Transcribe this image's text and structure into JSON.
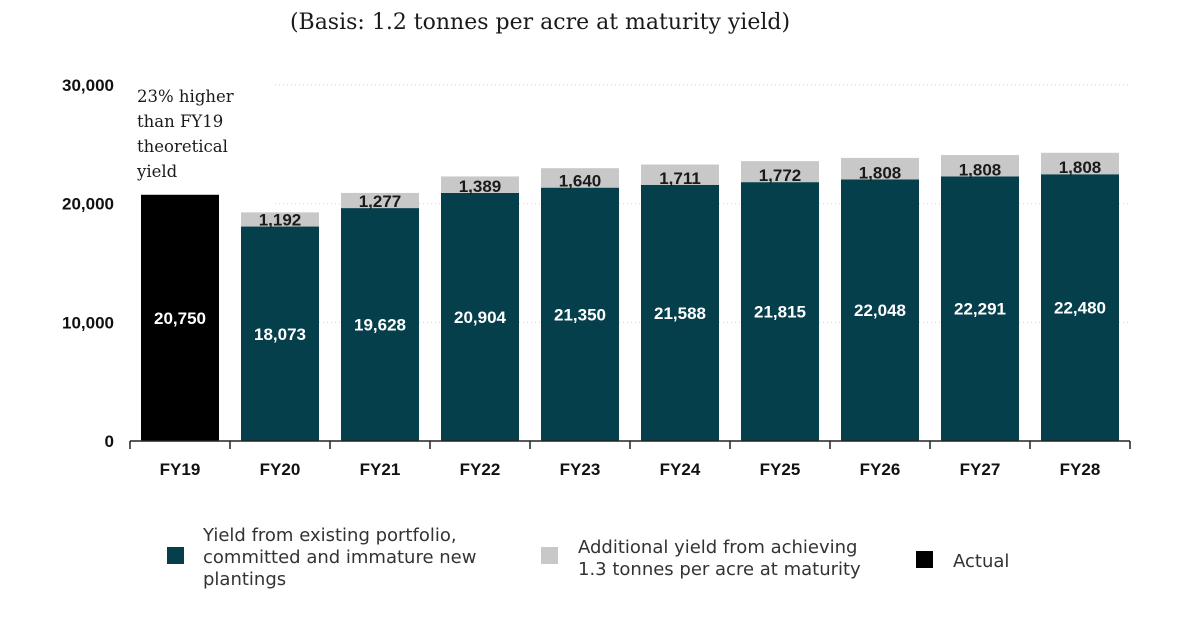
{
  "chart_data": {
    "type": "bar",
    "stacked": true,
    "subtitle": "(Basis: 1.2 tonnes per acre at maturity yield)",
    "categories": [
      "FY19",
      "FY20",
      "FY21",
      "FY22",
      "FY23",
      "FY24",
      "FY25",
      "FY26",
      "FY27",
      "FY28"
    ],
    "series": [
      {
        "name": "Actual",
        "color": "#000000",
        "values": [
          20750,
          null,
          null,
          null,
          null,
          null,
          null,
          null,
          null,
          null
        ],
        "labels": [
          "20,750",
          "",
          "",
          "",
          "",
          "",
          "",
          "",
          "",
          ""
        ]
      },
      {
        "name": "Yield from existing portfolio, committed and immature new plantings",
        "color": "#053f4c",
        "values": [
          null,
          18073,
          19628,
          20904,
          21350,
          21588,
          21815,
          22048,
          22291,
          22480
        ],
        "labels": [
          "",
          "18,073",
          "19,628",
          "20,904",
          "21,350",
          "21,588",
          "21,815",
          "22,048",
          "22,291",
          "22,480"
        ]
      },
      {
        "name": "Additional yield from achieving 1.3 tonnes per acre at maturity",
        "color": "#c8c8c8",
        "values": [
          null,
          1192,
          1277,
          1389,
          1640,
          1711,
          1772,
          1808,
          1808,
          1808
        ],
        "labels": [
          "",
          "1,192",
          "1,277",
          "1,389",
          "1,640",
          "1,711",
          "1,772",
          "1,808",
          "1,808",
          "1,808"
        ]
      }
    ],
    "ylim": [
      0,
      30000
    ],
    "yticks": [
      0,
      10000,
      20000,
      30000
    ],
    "ytick_labels": [
      "0",
      "10,000",
      "20,000",
      "30,000"
    ],
    "grid": "horizontal dotted",
    "annotation": {
      "category": "FY19",
      "lines": [
        "23% higher",
        "than FY19",
        "theoretical",
        "yield"
      ]
    },
    "legend": {
      "placement": "bottom",
      "items": [
        {
          "lines": [
            "Yield from existing portfolio,",
            "committed and immature new",
            "plantings"
          ],
          "color": "#053f4c"
        },
        {
          "lines": [
            "Additional yield from achieving",
            "1.3 tonnes per acre at maturity"
          ],
          "color": "#c8c8c8"
        },
        {
          "lines": [
            "Actual"
          ],
          "color": "#000000"
        }
      ]
    }
  }
}
